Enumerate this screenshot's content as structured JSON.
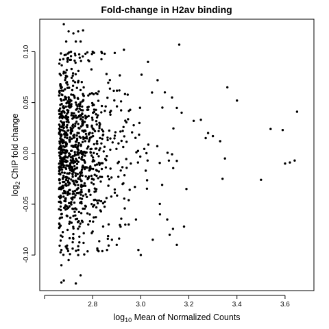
{
  "chart_data": {
    "type": "scatter",
    "title": "Fold-change in H2av binding",
    "xlabel": {
      "prefix": "log",
      "subscript": "10",
      "rest": " Mean of Normalized Counts"
    },
    "ylabel": {
      "prefix": "log",
      "subscript": "2",
      "rest": " ChIP fold change"
    },
    "xlim": [
      2.58,
      3.72
    ],
    "ylim": [
      -0.135,
      0.132
    ],
    "xticks": [
      2.6,
      2.8,
      3.0,
      3.2,
      3.4,
      3.6
    ],
    "xtick_labels": [
      "",
      "2.8",
      "3.0",
      "3.2",
      "3.4",
      "3.6"
    ],
    "yticks": [
      -0.1,
      -0.05,
      0.0,
      0.05,
      0.1
    ],
    "ytick_labels": [
      "-0.10",
      "-0.05",
      "0.00",
      "0.05",
      "0.10"
    ],
    "grid": false,
    "legend": "none",
    "point_color": "#000000",
    "highlighted_points": {
      "x": [
        2.68,
        2.7,
        2.72,
        2.74,
        2.76,
        2.69,
        2.73,
        2.75,
        2.71,
        2.77,
        2.67,
        2.8,
        2.85,
        2.93,
        3.03,
        3.16,
        3.1,
        3.07,
        3.13,
        3.36,
        3.4,
        3.54,
        3.59,
        3.64,
        3.65,
        3.22,
        3.25,
        3.27,
        3.28,
        3.33,
        3.34,
        3.35,
        3.3,
        3.6,
        3.62,
        3.5,
        3.08,
        3.12,
        3.15,
        3.18,
        3.19,
        3.11,
        3.05,
        3.0,
        2.99,
        2.98,
        2.95,
        2.67,
        2.68,
        2.73,
        2.75,
        2.7,
        2.67,
        2.74,
        2.82,
        2.86,
        2.88,
        2.9,
        3.09,
        3.17
      ],
      "y": [
        0.127,
        0.12,
        0.118,
        0.12,
        0.121,
        0.11,
        0.11,
        0.11,
        0.1,
        0.098,
        -0.127,
        0.1,
        0.098,
        0.102,
        0.09,
        0.107,
        0.06,
        0.072,
        0.055,
        0.065,
        0.052,
        0.024,
        0.023,
        -0.007,
        0.041,
        0.032,
        0.033,
        0.015,
        0.02,
        0.012,
        -0.025,
        -0.005,
        0.017,
        -0.01,
        -0.009,
        -0.026,
        -0.06,
        -0.08,
        -0.09,
        -0.072,
        -0.035,
        -0.065,
        -0.085,
        -0.1,
        -0.095,
        -0.065,
        -0.07,
        -0.11,
        -0.125,
        -0.128,
        -0.12,
        -0.105,
        -0.095,
        -0.1,
        -0.095,
        -0.095,
        -0.085,
        -0.09,
        0.045,
        0.04
      ]
    },
    "bulk_cloud": {
      "description_from_image": "dense cloud of ~1000 points",
      "x_range": [
        2.66,
        3.15
      ],
      "y_range": [
        -0.1,
        0.1
      ],
      "approx_count": 1000
    }
  }
}
